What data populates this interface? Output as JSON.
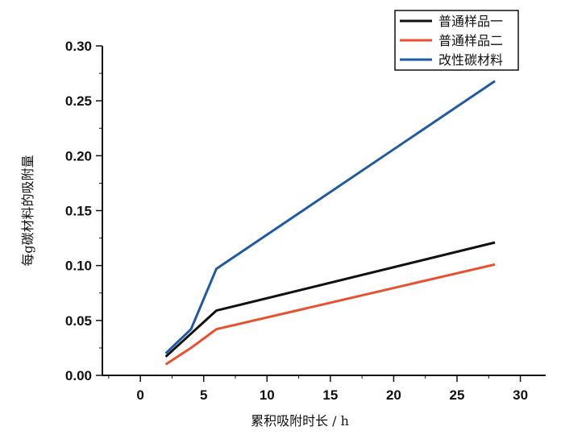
{
  "chart_data": {
    "type": "line",
    "xlabel": "累积吸附时长 /  h",
    "ylabel": "每g碳材料的吸附量",
    "xlim": [
      -3,
      32
    ],
    "ylim": [
      0,
      0.3
    ],
    "x_ticks": [
      0,
      5,
      10,
      15,
      20,
      25,
      30
    ],
    "x_tick_labels": [
      "0",
      "5",
      "10",
      "15",
      "20",
      "25",
      "30"
    ],
    "y_ticks": [
      0.0,
      0.05,
      0.1,
      0.15,
      0.2,
      0.25,
      0.3
    ],
    "y_tick_labels": [
      "0.00",
      "0.05",
      "0.10",
      "0.15",
      "0.20",
      "0.25",
      "0.30"
    ],
    "grid": false,
    "legend_position": "top-right",
    "series": [
      {
        "name": "普通样品一",
        "color": "#111111",
        "x": [
          2,
          4,
          6,
          28
        ],
        "y": [
          0.017,
          0.038,
          0.059,
          0.121
        ]
      },
      {
        "name": "普通样品二",
        "color": "#e8502e",
        "x": [
          2,
          4,
          6,
          28
        ],
        "y": [
          0.01,
          0.025,
          0.042,
          0.101
        ]
      },
      {
        "name": "改性碳材料",
        "color": "#1f5aa6",
        "x": [
          2,
          4,
          6,
          28
        ],
        "y": [
          0.02,
          0.042,
          0.097,
          0.268
        ]
      }
    ]
  }
}
